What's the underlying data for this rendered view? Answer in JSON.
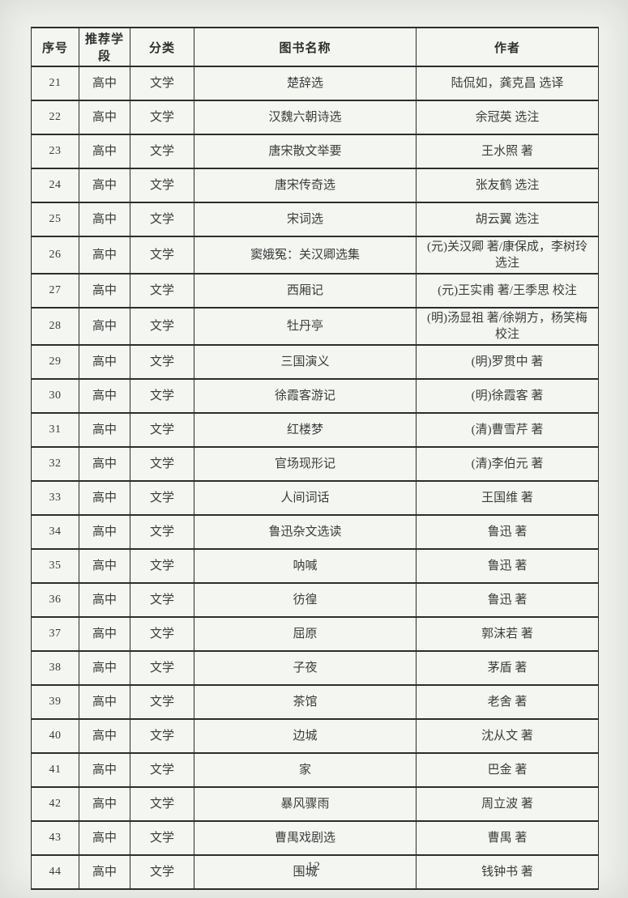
{
  "document": {
    "page_number": "12"
  },
  "table": {
    "headers": [
      "序号",
      "推荐学段",
      "分类",
      "图书名称",
      "作者"
    ],
    "rows": [
      {
        "no": "21",
        "stage": "高中",
        "category": "文学",
        "title": "楚辞选",
        "author": "陆侃如，龚克昌 选译"
      },
      {
        "no": "22",
        "stage": "高中",
        "category": "文学",
        "title": "汉魏六朝诗选",
        "author": "余冠英 选注"
      },
      {
        "no": "23",
        "stage": "高中",
        "category": "文学",
        "title": "唐宋散文举要",
        "author": "王水照 著"
      },
      {
        "no": "24",
        "stage": "高中",
        "category": "文学",
        "title": "唐宋传奇选",
        "author": "张友鹤 选注"
      },
      {
        "no": "25",
        "stage": "高中",
        "category": "文学",
        "title": "宋词选",
        "author": "胡云翼 选注"
      },
      {
        "no": "26",
        "stage": "高中",
        "category": "文学",
        "title": "窦娥冤：关汉卿选集",
        "author": "(元)关汉卿 著/康保成，李树玲 选注"
      },
      {
        "no": "27",
        "stage": "高中",
        "category": "文学",
        "title": "西厢记",
        "author": "(元)王实甫 著/王季思 校注"
      },
      {
        "no": "28",
        "stage": "高中",
        "category": "文学",
        "title": "牡丹亭",
        "author": "(明)汤显祖 著/徐朔方，杨笑梅 校注"
      },
      {
        "no": "29",
        "stage": "高中",
        "category": "文学",
        "title": "三国演义",
        "author": "(明)罗贯中 著"
      },
      {
        "no": "30",
        "stage": "高中",
        "category": "文学",
        "title": "徐霞客游记",
        "author": "(明)徐霞客 著"
      },
      {
        "no": "31",
        "stage": "高中",
        "category": "文学",
        "title": "红楼梦",
        "author": "(清)曹雪芹 著"
      },
      {
        "no": "32",
        "stage": "高中",
        "category": "文学",
        "title": "官场现形记",
        "author": "(清)李伯元 著"
      },
      {
        "no": "33",
        "stage": "高中",
        "category": "文学",
        "title": "人间词话",
        "author": "王国维 著"
      },
      {
        "no": "34",
        "stage": "高中",
        "category": "文学",
        "title": "鲁迅杂文选读",
        "author": "鲁迅 著"
      },
      {
        "no": "35",
        "stage": "高中",
        "category": "文学",
        "title": "呐喊",
        "author": "鲁迅 著"
      },
      {
        "no": "36",
        "stage": "高中",
        "category": "文学",
        "title": "彷徨",
        "author": "鲁迅 著"
      },
      {
        "no": "37",
        "stage": "高中",
        "category": "文学",
        "title": "屈原",
        "author": "郭沫若 著"
      },
      {
        "no": "38",
        "stage": "高中",
        "category": "文学",
        "title": "子夜",
        "author": "茅盾 著"
      },
      {
        "no": "39",
        "stage": "高中",
        "category": "文学",
        "title": "茶馆",
        "author": "老舍 著"
      },
      {
        "no": "40",
        "stage": "高中",
        "category": "文学",
        "title": "边城",
        "author": "沈从文 著"
      },
      {
        "no": "41",
        "stage": "高中",
        "category": "文学",
        "title": "家",
        "author": "巴金 著"
      },
      {
        "no": "42",
        "stage": "高中",
        "category": "文学",
        "title": "暴风骤雨",
        "author": "周立波 著"
      },
      {
        "no": "43",
        "stage": "高中",
        "category": "文学",
        "title": "曹禺戏剧选",
        "author": "曹禺 著"
      },
      {
        "no": "44",
        "stage": "高中",
        "category": "文学",
        "title": "围城",
        "author": "钱钟书 著"
      }
    ]
  }
}
